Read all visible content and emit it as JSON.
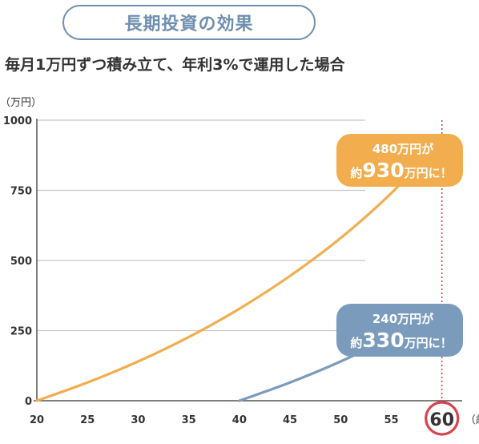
{
  "header": {
    "title": "長期投資の効果",
    "subtitle": "毎月1万円ずつ積み立て、年利3%で運用した場合"
  },
  "chart_data": {
    "type": "line",
    "y_unit": "（万円）",
    "x_unit": "（歳）",
    "xlim": [
      20,
      62
    ],
    "ylim": [
      0,
      1000
    ],
    "x_ticks": [
      20,
      25,
      30,
      35,
      40,
      45,
      50,
      55,
      60
    ],
    "y_ticks": [
      0,
      250,
      500,
      750,
      1000
    ],
    "highlight_x": 60,
    "highlight_label": "60",
    "series": [
      {
        "color": "#f2ad4e",
        "points": [
          [
            20,
            0
          ],
          [
            25,
            65
          ],
          [
            30,
            140
          ],
          [
            35,
            227
          ],
          [
            40,
            328
          ],
          [
            45,
            445
          ],
          [
            50,
            580
          ],
          [
            55,
            740
          ],
          [
            60,
            930
          ]
        ]
      },
      {
        "color": "#7b9bbd",
        "points": [
          [
            40,
            0
          ],
          [
            45,
            65
          ],
          [
            50,
            140
          ],
          [
            55,
            227
          ],
          [
            60,
            330
          ]
        ]
      }
    ],
    "callouts": [
      {
        "line1": "480万円が",
        "prefix": "約",
        "big": "930",
        "suffix": "万円に！",
        "color": "#f2ad4e"
      },
      {
        "line1": "240万円が",
        "prefix": "約",
        "big": "330",
        "suffix": "万円に！",
        "color": "#7b9bbd"
      }
    ],
    "colors": {
      "axis": "#555555",
      "grid": "#c8c8c8",
      "highlight_line": "#d9434e",
      "circle": "#d9434e"
    }
  }
}
